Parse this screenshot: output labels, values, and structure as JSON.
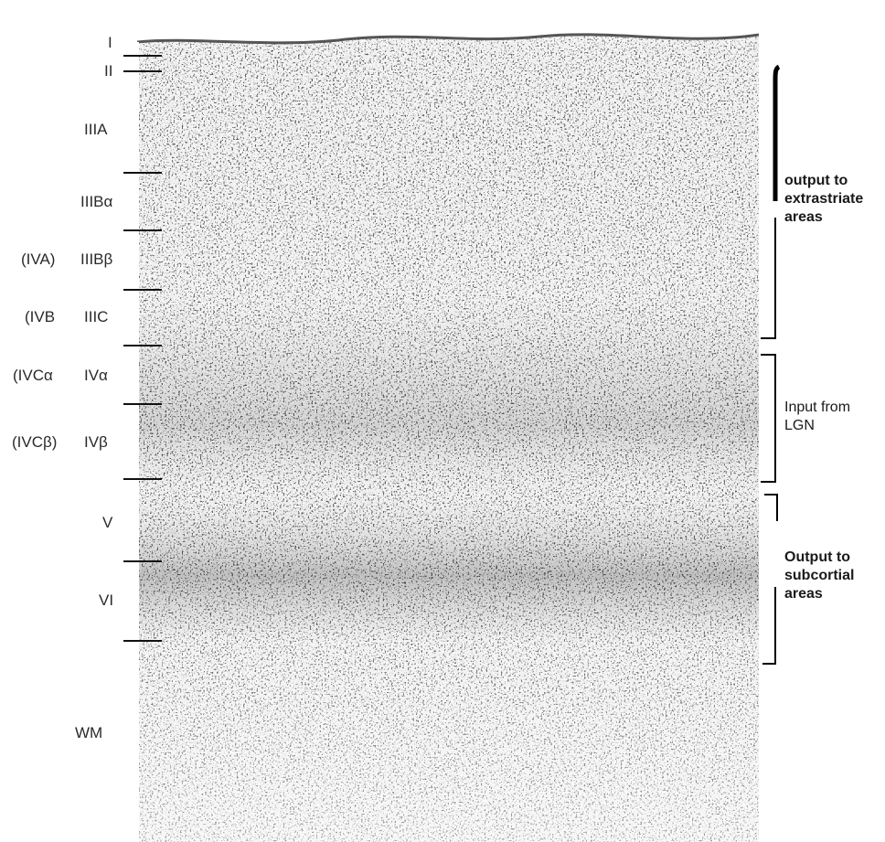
{
  "layers": [
    {
      "id": "I",
      "label": "I"
    },
    {
      "id": "II",
      "label": "II"
    },
    {
      "id": "IIIA",
      "label": "IIIA"
    },
    {
      "id": "IIIBa",
      "label": "IIIBα"
    },
    {
      "id": "IIIBb",
      "label": "IIIBβ",
      "old_label": "(IVA)"
    },
    {
      "id": "IIIC",
      "label": "IIIC",
      "old_label": "(IVB"
    },
    {
      "id": "IVa",
      "label": "IVα",
      "old_label": "(IVCα"
    },
    {
      "id": "IVb",
      "label": "IVβ",
      "old_label": "(IVCβ)"
    },
    {
      "id": "V",
      "label": "V"
    },
    {
      "id": "VI",
      "label": "VI"
    },
    {
      "id": "WM",
      "label": "WM"
    }
  ],
  "groups": [
    {
      "id": "extrastriate",
      "lines": [
        "output to",
        "extrastriate",
        "areas"
      ]
    },
    {
      "id": "lgn",
      "lines": [
        "Input from",
        "LGN"
      ]
    },
    {
      "id": "subcortical",
      "lines": [
        "Output to",
        "subcortial",
        "areas"
      ]
    }
  ]
}
